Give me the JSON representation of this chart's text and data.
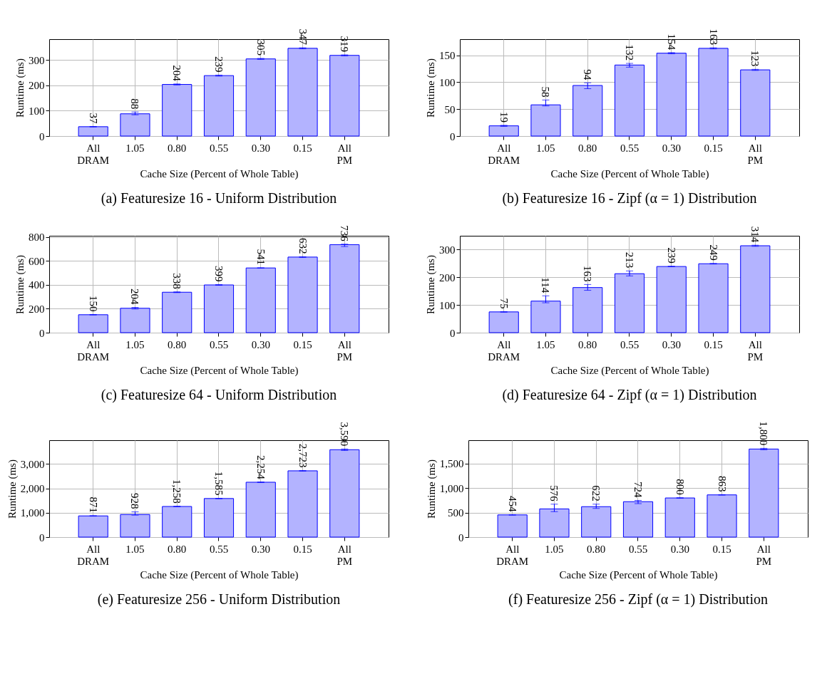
{
  "chart_data": [
    {
      "type": "bar",
      "title": "(a) Featuresize 16 - Uniform Distribution",
      "xlabel": "Cache Size (Percent of Whole Table)",
      "ylabel": "Runtime (ms)",
      "categories": [
        "All DRAM",
        "1.05",
        "0.80",
        "0.55",
        "0.30",
        "0.15",
        "All PM"
      ],
      "series": [
        {
          "color": "#b3b3ff",
          "values": [
            37,
            88,
            204,
            239,
            305,
            347,
            319
          ],
          "errors": [
            1,
            [
              84,
              95
            ],
            2,
            2,
            2,
            2,
            2
          ],
          "value_labels": [
            "37",
            "88",
            "204",
            "239",
            "305",
            "347",
            "319"
          ]
        }
      ],
      "ylim": [
        0,
        383
      ],
      "yticks": [
        0,
        100,
        200,
        300
      ],
      "grid": true
    },
    {
      "type": "bar",
      "title": "(b) Featuresize 16 - Zipf (α = 1) Distribution",
      "xlabel": "Cache Size (Percent of Whole Table)",
      "ylabel": "Runtime (ms)",
      "categories": [
        "All DRAM",
        "1.05",
        "0.80",
        "0.55",
        "0.30",
        "0.15",
        "All PM"
      ],
      "series": [
        {
          "color": "#b3b3ff",
          "values": [
            19,
            58,
            94,
            132,
            154,
            163,
            123
          ],
          "errors": [
            1,
            [
              56,
              67
            ],
            [
              88,
              99
            ],
            [
              128,
              135
            ],
            1,
            1,
            1
          ],
          "value_labels": [
            "19",
            "58",
            "94",
            "132",
            "154",
            "163",
            "123"
          ]
        }
      ],
      "ylim": [
        0,
        180
      ],
      "yticks": [
        0,
        50,
        100,
        150
      ],
      "grid": true
    },
    {
      "type": "bar",
      "title": "(c) Featuresize 64 - Uniform Distribution",
      "xlabel": "Cache Size (Percent of Whole Table)",
      "ylabel": "Runtime (ms)",
      "categories": [
        "All DRAM",
        "1.05",
        "0.80",
        "0.55",
        "0.30",
        "0.15",
        "All PM"
      ],
      "series": [
        {
          "color": "#b3b3ff",
          "values": [
            150,
            204,
            338,
            399,
            541,
            632,
            736
          ],
          "errors": [
            2,
            [
              198,
              211
            ],
            3,
            3,
            1,
            3,
            [
              720,
              740
            ]
          ],
          "value_labels": [
            "150",
            "204",
            "338",
            "399",
            "541",
            "632",
            "736"
          ]
        }
      ],
      "ylim": [
        0,
        810
      ],
      "yticks": [
        0,
        200,
        400,
        600,
        800
      ],
      "grid": true
    },
    {
      "type": "bar",
      "title": "(d) Featuresize 64 - Zipf (α = 1) Distribution",
      "xlabel": "Cache Size (Percent of Whole Table)",
      "ylabel": "Runtime (ms)",
      "categories": [
        "All DRAM",
        "1.05",
        "0.80",
        "0.55",
        "0.30",
        "0.15",
        "All PM"
      ],
      "series": [
        {
          "color": "#b3b3ff",
          "values": [
            75,
            114,
            163,
            213,
            239,
            249,
            314
          ],
          "errors": [
            1,
            [
              108,
              133
            ],
            [
              153,
              174
            ],
            [
              205,
              223
            ],
            1,
            1,
            2
          ],
          "value_labels": [
            "75",
            "114",
            "163",
            "213",
            "239",
            "249",
            "314"
          ]
        }
      ],
      "ylim": [
        0,
        350
      ],
      "yticks": [
        0,
        100,
        200,
        300
      ],
      "grid": true
    },
    {
      "type": "bar",
      "title": "(e) Featuresize 256 - Uniform Distribution",
      "xlabel": "Cache Size (Percent of Whole Table)",
      "ylabel": "Runtime (ms)",
      "categories": [
        "All DRAM",
        "1.05",
        "0.80",
        "0.55",
        "0.30",
        "0.15",
        "All PM"
      ],
      "series": [
        {
          "color": "#b3b3ff",
          "values": [
            871,
            928,
            1258,
            1585,
            2254,
            2723,
            3590
          ],
          "errors": [
            10,
            [
              903,
              1037
            ],
            10,
            10,
            10,
            10,
            30
          ],
          "value_labels": [
            "871",
            "928",
            "1,258",
            "1,585",
            "2,254",
            "2,723",
            "3,590"
          ]
        }
      ],
      "ylim": [
        0,
        3980
      ],
      "yticks": [
        0,
        {
          "value": 1000,
          "label": "1,000"
        },
        {
          "value": 2000,
          "label": "2,000"
        },
        {
          "value": 3000,
          "label": "3,000"
        }
      ],
      "grid": true
    },
    {
      "type": "bar",
      "title": "(f) Featuresize 256 - Zipf (α = 1) Distribution",
      "xlabel": "Cache Size (Percent of Whole Table)",
      "ylabel": "Runtime (ms)",
      "categories": [
        "All DRAM",
        "1.05",
        "0.80",
        "0.55",
        "0.30",
        "0.15",
        "All PM"
      ],
      "series": [
        {
          "color": "#b3b3ff",
          "values": [
            454,
            576,
            622,
            724,
            800,
            863,
            1800
          ],
          "errors": [
            5,
            [
              520,
              673
            ],
            [
              586,
              673
            ],
            [
              684,
              750
            ],
            5,
            5,
            15
          ],
          "value_labels": [
            "454",
            "576",
            "622",
            "724",
            "800",
            "863",
            "1,800"
          ]
        }
      ],
      "ylim": [
        0,
        1980
      ],
      "yticks": [
        0,
        500,
        {
          "value": 1000,
          "label": "1,000"
        },
        {
          "value": 1500,
          "label": "1,500"
        }
      ],
      "grid": true
    }
  ]
}
